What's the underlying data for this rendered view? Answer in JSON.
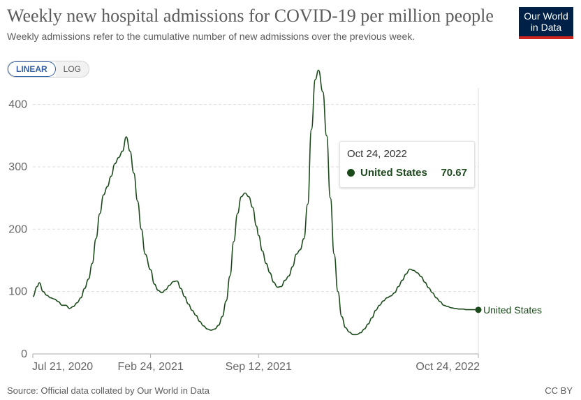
{
  "header": {
    "title": "Weekly new hospital admissions for COVID-19 per million people",
    "subtitle": "Weekly admissions refer to the cumulative number of new admissions over the previous week."
  },
  "logo": {
    "line1": "Our World",
    "line2": "in Data",
    "bg_color": "#002147",
    "accent_color": "#ce261e"
  },
  "scale_toggle": {
    "linear_label": "LINEAR",
    "log_label": "LOG",
    "selected": "LINEAR"
  },
  "tooltip": {
    "date": "Oct 24, 2022",
    "series_name": "United States",
    "value": "70.67"
  },
  "footer": {
    "source": "Source: Official data collated by Our World in Data",
    "license": "CC BY"
  },
  "chart_data": {
    "type": "line",
    "xlabel": "",
    "ylabel": "",
    "ylim": [
      0,
      460
    ],
    "yticks": [
      0,
      100,
      200,
      300,
      400
    ],
    "ytick_labels": [
      "0",
      "100",
      "200",
      "300",
      "400"
    ],
    "xticks": [
      "2020-07-21",
      "2021-02-24",
      "2021-09-12",
      "2022-10-24"
    ],
    "xtick_labels": [
      "Jul 21, 2020",
      "Feb 24, 2021",
      "Sep 12, 2021",
      "Oct 24, 2022"
    ],
    "xlim": [
      "2020-07-21",
      "2022-10-24"
    ],
    "grid": "horizontal dashed",
    "legend": "end-of-line label",
    "series": [
      {
        "name": "United States",
        "color": "#1b4a1b",
        "end_label": "United States",
        "points": [
          [
            "2020-07-21",
            92
          ],
          [
            "2020-07-29",
            108
          ],
          [
            "2020-08-02",
            114
          ],
          [
            "2020-08-09",
            100
          ],
          [
            "2020-08-16",
            94
          ],
          [
            "2020-08-23",
            90
          ],
          [
            "2020-08-30",
            88
          ],
          [
            "2020-09-06",
            84
          ],
          [
            "2020-09-13",
            78
          ],
          [
            "2020-09-20",
            78
          ],
          [
            "2020-09-27",
            73
          ],
          [
            "2020-10-04",
            76
          ],
          [
            "2020-10-11",
            82
          ],
          [
            "2020-10-18",
            90
          ],
          [
            "2020-10-25",
            105
          ],
          [
            "2020-11-01",
            120
          ],
          [
            "2020-11-08",
            145
          ],
          [
            "2020-11-15",
            185
          ],
          [
            "2020-11-22",
            225
          ],
          [
            "2020-11-29",
            255
          ],
          [
            "2020-12-06",
            268
          ],
          [
            "2020-12-13",
            285
          ],
          [
            "2020-12-20",
            305
          ],
          [
            "2020-12-27",
            315
          ],
          [
            "2021-01-03",
            325
          ],
          [
            "2021-01-10",
            348
          ],
          [
            "2021-01-17",
            325
          ],
          [
            "2021-01-24",
            290
          ],
          [
            "2021-01-31",
            245
          ],
          [
            "2021-02-07",
            200
          ],
          [
            "2021-02-14",
            160
          ],
          [
            "2021-02-24",
            135
          ],
          [
            "2021-03-03",
            112
          ],
          [
            "2021-03-10",
            102
          ],
          [
            "2021-03-17",
            98
          ],
          [
            "2021-03-24",
            103
          ],
          [
            "2021-03-31",
            110
          ],
          [
            "2021-04-07",
            116
          ],
          [
            "2021-04-14",
            117
          ],
          [
            "2021-04-21",
            105
          ],
          [
            "2021-04-28",
            92
          ],
          [
            "2021-05-05",
            80
          ],
          [
            "2021-05-12",
            70
          ],
          [
            "2021-05-19",
            62
          ],
          [
            "2021-05-26",
            52
          ],
          [
            "2021-06-02",
            45
          ],
          [
            "2021-06-09",
            40
          ],
          [
            "2021-06-16",
            38
          ],
          [
            "2021-06-23",
            40
          ],
          [
            "2021-06-30",
            46
          ],
          [
            "2021-07-07",
            60
          ],
          [
            "2021-07-14",
            85
          ],
          [
            "2021-07-21",
            125
          ],
          [
            "2021-07-28",
            180
          ],
          [
            "2021-08-04",
            225
          ],
          [
            "2021-08-11",
            252
          ],
          [
            "2021-08-18",
            258
          ],
          [
            "2021-08-25",
            252
          ],
          [
            "2021-09-01",
            235
          ],
          [
            "2021-09-08",
            205
          ],
          [
            "2021-09-12",
            190
          ],
          [
            "2021-09-19",
            165
          ],
          [
            "2021-09-26",
            145
          ],
          [
            "2021-10-03",
            130
          ],
          [
            "2021-10-10",
            115
          ],
          [
            "2021-10-17",
            107
          ],
          [
            "2021-10-24",
            108
          ],
          [
            "2021-10-31",
            118
          ],
          [
            "2021-11-07",
            125
          ],
          [
            "2021-11-14",
            140
          ],
          [
            "2021-11-21",
            160
          ],
          [
            "2021-11-28",
            167
          ],
          [
            "2021-12-05",
            185
          ],
          [
            "2021-12-12",
            240
          ],
          [
            "2021-12-19",
            360
          ],
          [
            "2021-12-26",
            440
          ],
          [
            "2022-01-01",
            455
          ],
          [
            "2022-01-09",
            420
          ],
          [
            "2022-01-16",
            350
          ],
          [
            "2022-01-23",
            250
          ],
          [
            "2022-01-30",
            160
          ],
          [
            "2022-02-06",
            100
          ],
          [
            "2022-02-13",
            60
          ],
          [
            "2022-02-20",
            42
          ],
          [
            "2022-02-27",
            35
          ],
          [
            "2022-03-06",
            31
          ],
          [
            "2022-03-13",
            31
          ],
          [
            "2022-03-20",
            34
          ],
          [
            "2022-03-27",
            40
          ],
          [
            "2022-04-03",
            48
          ],
          [
            "2022-04-10",
            58
          ],
          [
            "2022-04-17",
            70
          ],
          [
            "2022-04-24",
            78
          ],
          [
            "2022-05-01",
            85
          ],
          [
            "2022-05-08",
            90
          ],
          [
            "2022-05-15",
            93
          ],
          [
            "2022-05-22",
            98
          ],
          [
            "2022-05-29",
            108
          ],
          [
            "2022-06-05",
            118
          ],
          [
            "2022-06-12",
            128
          ],
          [
            "2022-06-19",
            136
          ],
          [
            "2022-06-26",
            134
          ],
          [
            "2022-07-03",
            130
          ],
          [
            "2022-07-10",
            124
          ],
          [
            "2022-07-17",
            115
          ],
          [
            "2022-07-24",
            106
          ],
          [
            "2022-07-31",
            98
          ],
          [
            "2022-08-07",
            90
          ],
          [
            "2022-08-14",
            84
          ],
          [
            "2022-08-21",
            78
          ],
          [
            "2022-08-28",
            76
          ],
          [
            "2022-09-04",
            74
          ],
          [
            "2022-09-11",
            73
          ],
          [
            "2022-09-18",
            72
          ],
          [
            "2022-09-25",
            72
          ],
          [
            "2022-10-02",
            71
          ],
          [
            "2022-10-09",
            71
          ],
          [
            "2022-10-16",
            71
          ],
          [
            "2022-10-24",
            70.67
          ]
        ]
      }
    ]
  }
}
